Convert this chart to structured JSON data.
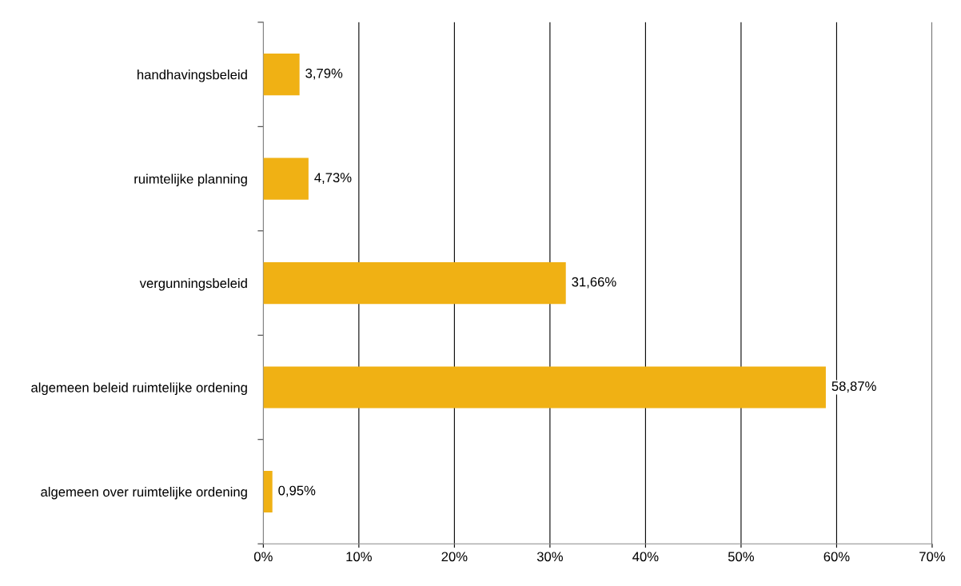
{
  "chart_data": {
    "type": "bar",
    "orientation": "horizontal",
    "categories": [
      "handhavingsbeleid",
      "ruimtelijke planning",
      "vergunningsbeleid",
      "algemeen beleid ruimtelijke ordening",
      "algemeen over ruimtelijke ordening"
    ],
    "values": [
      3.79,
      4.73,
      31.66,
      58.87,
      0.95
    ],
    "value_labels": [
      "3,79%",
      "4,73%",
      "31,66%",
      "58,87%",
      "0,95%"
    ],
    "color": "#f0b114",
    "xlim": [
      0,
      70
    ],
    "xticks": [
      {
        "value": 0,
        "label": "0%"
      },
      {
        "value": 10,
        "label": "10%"
      },
      {
        "value": 20,
        "label": "20%"
      },
      {
        "value": 30,
        "label": "30%"
      },
      {
        "value": 40,
        "label": "40%"
      },
      {
        "value": 50,
        "label": "50%"
      },
      {
        "value": 60,
        "label": "60%"
      },
      {
        "value": 70,
        "label": "70%"
      }
    ],
    "grid": "x"
  }
}
